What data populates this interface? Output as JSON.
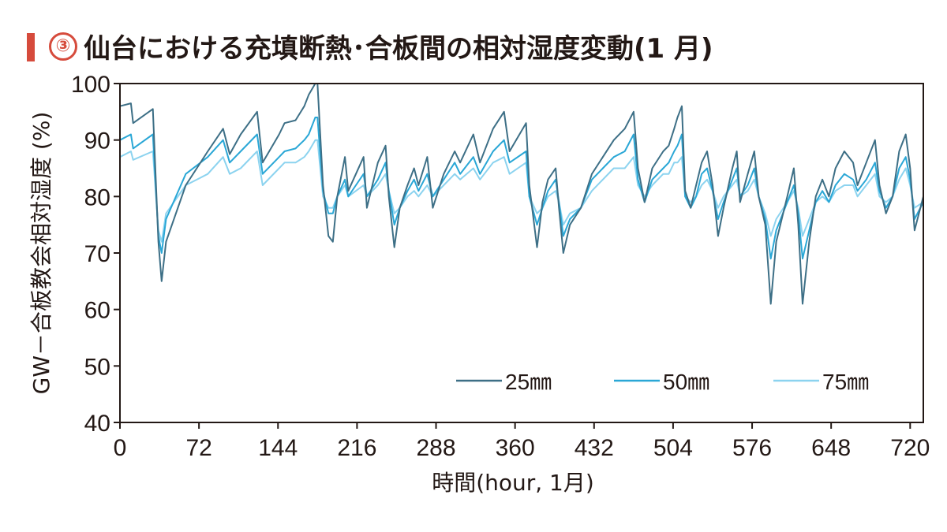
{
  "title": {
    "marker": "③",
    "text": "仙台における充填断熱･合板間の相対湿度変動(1 月)"
  },
  "chart_data": {
    "type": "line",
    "title": "③仙台における充填断熱･合板間の相対湿度変動(1 月)",
    "xlabel": "時間(hour, 1月)",
    "ylabel": "GW－合板教会相対湿度 (%)",
    "xlim": [
      0,
      732
    ],
    "ylim": [
      40,
      100
    ],
    "xticks": [
      0,
      72,
      144,
      216,
      288,
      360,
      432,
      504,
      576,
      648,
      720
    ],
    "yticks": [
      40,
      50,
      60,
      70,
      80,
      90,
      100
    ],
    "grid": false,
    "legend_position": "bottom-right",
    "series": [
      {
        "name": "25㎜",
        "color": "#3d6f86",
        "points": [
          [
            0,
            96
          ],
          [
            10,
            96.5
          ],
          [
            12,
            93
          ],
          [
            30,
            95.5
          ],
          [
            35,
            72
          ],
          [
            38,
            65
          ],
          [
            42,
            72
          ],
          [
            60,
            82
          ],
          [
            80,
            88
          ],
          [
            94,
            92
          ],
          [
            100,
            87.5
          ],
          [
            110,
            91
          ],
          [
            125,
            95
          ],
          [
            130,
            86
          ],
          [
            145,
            91
          ],
          [
            150,
            93
          ],
          [
            160,
            93.5
          ],
          [
            168,
            96
          ],
          [
            172,
            98
          ],
          [
            178,
            100
          ],
          [
            180,
            100
          ],
          [
            185,
            82
          ],
          [
            190,
            73
          ],
          [
            194,
            72
          ],
          [
            198,
            80
          ],
          [
            205,
            87
          ],
          [
            208,
            81
          ],
          [
            215,
            84
          ],
          [
            222,
            87
          ],
          [
            225,
            78
          ],
          [
            235,
            86
          ],
          [
            242,
            89
          ],
          [
            245,
            80
          ],
          [
            250,
            71
          ],
          [
            255,
            78
          ],
          [
            262,
            82
          ],
          [
            268,
            85
          ],
          [
            272,
            82
          ],
          [
            280,
            87
          ],
          [
            285,
            78
          ],
          [
            295,
            84
          ],
          [
            305,
            88
          ],
          [
            310,
            86
          ],
          [
            322,
            91
          ],
          [
            328,
            86
          ],
          [
            340,
            92
          ],
          [
            350,
            95
          ],
          [
            355,
            88
          ],
          [
            370,
            93
          ],
          [
            373,
            82
          ],
          [
            380,
            71
          ],
          [
            385,
            79
          ],
          [
            390,
            83
          ],
          [
            397,
            85
          ],
          [
            400,
            78
          ],
          [
            404,
            70
          ],
          [
            410,
            75
          ],
          [
            420,
            78
          ],
          [
            430,
            84
          ],
          [
            440,
            87
          ],
          [
            450,
            90
          ],
          [
            460,
            92
          ],
          [
            468,
            95
          ],
          [
            472,
            85
          ],
          [
            478,
            79
          ],
          [
            485,
            85
          ],
          [
            495,
            88
          ],
          [
            500,
            89
          ],
          [
            505,
            92
          ],
          [
            508,
            94
          ],
          [
            512,
            96
          ],
          [
            515,
            81
          ],
          [
            520,
            78
          ],
          [
            525,
            82
          ],
          [
            530,
            86
          ],
          [
            535,
            88
          ],
          [
            540,
            82
          ],
          [
            545,
            73
          ],
          [
            550,
            78
          ],
          [
            558,
            85
          ],
          [
            562,
            88
          ],
          [
            565,
            79
          ],
          [
            572,
            84
          ],
          [
            578,
            88
          ],
          [
            582,
            80
          ],
          [
            588,
            75
          ],
          [
            593,
            61
          ],
          [
            598,
            72
          ],
          [
            608,
            80
          ],
          [
            614,
            85
          ],
          [
            618,
            75
          ],
          [
            622,
            61
          ],
          [
            628,
            72
          ],
          [
            634,
            80
          ],
          [
            640,
            83
          ],
          [
            646,
            80
          ],
          [
            652,
            85
          ],
          [
            660,
            88
          ],
          [
            668,
            86
          ],
          [
            672,
            82
          ],
          [
            680,
            86
          ],
          [
            688,
            90
          ],
          [
            692,
            82
          ],
          [
            698,
            77
          ],
          [
            704,
            80
          ],
          [
            710,
            88
          ],
          [
            716,
            91
          ],
          [
            720,
            85
          ],
          [
            724,
            74
          ],
          [
            732,
            80
          ]
        ]
      },
      {
        "name": "50㎜",
        "color": "#2aa7d6",
        "points": [
          [
            0,
            90
          ],
          [
            10,
            91
          ],
          [
            12,
            88.5
          ],
          [
            30,
            91
          ],
          [
            35,
            73
          ],
          [
            38,
            70
          ],
          [
            42,
            76
          ],
          [
            60,
            84
          ],
          [
            80,
            87
          ],
          [
            94,
            90
          ],
          [
            100,
            86
          ],
          [
            110,
            88
          ],
          [
            125,
            91
          ],
          [
            130,
            84
          ],
          [
            145,
            87
          ],
          [
            150,
            88
          ],
          [
            160,
            88.5
          ],
          [
            168,
            90
          ],
          [
            172,
            91
          ],
          [
            178,
            94
          ],
          [
            180,
            94
          ],
          [
            185,
            81
          ],
          [
            190,
            77
          ],
          [
            194,
            77
          ],
          [
            198,
            80
          ],
          [
            205,
            83
          ],
          [
            208,
            80
          ],
          [
            215,
            82
          ],
          [
            222,
            84
          ],
          [
            225,
            80
          ],
          [
            235,
            83
          ],
          [
            242,
            86
          ],
          [
            245,
            81
          ],
          [
            250,
            75
          ],
          [
            255,
            78
          ],
          [
            262,
            81
          ],
          [
            268,
            83
          ],
          [
            272,
            81
          ],
          [
            280,
            84
          ],
          [
            285,
            80
          ],
          [
            295,
            83
          ],
          [
            305,
            86
          ],
          [
            310,
            84
          ],
          [
            322,
            87
          ],
          [
            328,
            84
          ],
          [
            340,
            88
          ],
          [
            350,
            90
          ],
          [
            355,
            86
          ],
          [
            370,
            88
          ],
          [
            373,
            80
          ],
          [
            380,
            75
          ],
          [
            385,
            78
          ],
          [
            390,
            81
          ],
          [
            397,
            83
          ],
          [
            400,
            79
          ],
          [
            404,
            73
          ],
          [
            410,
            76
          ],
          [
            420,
            78
          ],
          [
            430,
            83
          ],
          [
            440,
            85
          ],
          [
            450,
            87
          ],
          [
            460,
            88
          ],
          [
            468,
            91
          ],
          [
            472,
            83
          ],
          [
            478,
            79
          ],
          [
            485,
            83
          ],
          [
            495,
            85
          ],
          [
            500,
            86
          ],
          [
            505,
            88
          ],
          [
            508,
            89
          ],
          [
            512,
            91
          ],
          [
            515,
            80
          ],
          [
            520,
            78
          ],
          [
            525,
            80
          ],
          [
            530,
            84
          ],
          [
            535,
            85
          ],
          [
            540,
            81
          ],
          [
            545,
            76
          ],
          [
            550,
            79
          ],
          [
            558,
            83
          ],
          [
            562,
            85
          ],
          [
            565,
            80
          ],
          [
            572,
            82
          ],
          [
            578,
            85
          ],
          [
            582,
            80
          ],
          [
            588,
            76
          ],
          [
            593,
            69
          ],
          [
            598,
            74
          ],
          [
            608,
            79
          ],
          [
            614,
            82
          ],
          [
            618,
            77
          ],
          [
            622,
            69
          ],
          [
            628,
            74
          ],
          [
            634,
            79
          ],
          [
            640,
            81
          ],
          [
            646,
            79
          ],
          [
            652,
            82
          ],
          [
            660,
            84
          ],
          [
            668,
            83
          ],
          [
            672,
            81
          ],
          [
            680,
            83
          ],
          [
            688,
            86
          ],
          [
            692,
            81
          ],
          [
            698,
            78
          ],
          [
            704,
            80
          ],
          [
            710,
            85
          ],
          [
            716,
            87
          ],
          [
            720,
            83
          ],
          [
            724,
            76
          ],
          [
            732,
            79
          ]
        ]
      },
      {
        "name": "75㎜",
        "color": "#8cd3ef",
        "points": [
          [
            0,
            87
          ],
          [
            10,
            88
          ],
          [
            12,
            86.5
          ],
          [
            30,
            88
          ],
          [
            35,
            74
          ],
          [
            38,
            72
          ],
          [
            42,
            77
          ],
          [
            60,
            82
          ],
          [
            80,
            84
          ],
          [
            94,
            87
          ],
          [
            100,
            84
          ],
          [
            110,
            85
          ],
          [
            125,
            88
          ],
          [
            130,
            82
          ],
          [
            145,
            85
          ],
          [
            150,
            86
          ],
          [
            160,
            86
          ],
          [
            168,
            87
          ],
          [
            172,
            88
          ],
          [
            178,
            90
          ],
          [
            180,
            90
          ],
          [
            185,
            80
          ],
          [
            190,
            78
          ],
          [
            194,
            78
          ],
          [
            198,
            80
          ],
          [
            205,
            82
          ],
          [
            208,
            80
          ],
          [
            215,
            81
          ],
          [
            222,
            82
          ],
          [
            225,
            80
          ],
          [
            235,
            82
          ],
          [
            242,
            84
          ],
          [
            245,
            81
          ],
          [
            250,
            77
          ],
          [
            255,
            78
          ],
          [
            262,
            80
          ],
          [
            268,
            81
          ],
          [
            272,
            80
          ],
          [
            280,
            82
          ],
          [
            285,
            80
          ],
          [
            295,
            82
          ],
          [
            305,
            84
          ],
          [
            310,
            83
          ],
          [
            322,
            85
          ],
          [
            328,
            83
          ],
          [
            340,
            86
          ],
          [
            350,
            87
          ],
          [
            355,
            84
          ],
          [
            370,
            86
          ],
          [
            373,
            80
          ],
          [
            380,
            77
          ],
          [
            385,
            78
          ],
          [
            390,
            80
          ],
          [
            397,
            81
          ],
          [
            400,
            79
          ],
          [
            404,
            75
          ],
          [
            410,
            77
          ],
          [
            420,
            78
          ],
          [
            430,
            81
          ],
          [
            440,
            83
          ],
          [
            450,
            85
          ],
          [
            460,
            85
          ],
          [
            468,
            87
          ],
          [
            472,
            82
          ],
          [
            478,
            80
          ],
          [
            485,
            82
          ],
          [
            495,
            84
          ],
          [
            500,
            84
          ],
          [
            505,
            86
          ],
          [
            508,
            86
          ],
          [
            512,
            87
          ],
          [
            515,
            80
          ],
          [
            520,
            79
          ],
          [
            525,
            80
          ],
          [
            530,
            82
          ],
          [
            535,
            83
          ],
          [
            540,
            81
          ],
          [
            545,
            78
          ],
          [
            550,
            80
          ],
          [
            558,
            82
          ],
          [
            562,
            83
          ],
          [
            565,
            80
          ],
          [
            572,
            81
          ],
          [
            578,
            83
          ],
          [
            582,
            80
          ],
          [
            588,
            77
          ],
          [
            593,
            73
          ],
          [
            598,
            76
          ],
          [
            608,
            79
          ],
          [
            614,
            81
          ],
          [
            618,
            78
          ],
          [
            622,
            73
          ],
          [
            628,
            76
          ],
          [
            634,
            79
          ],
          [
            640,
            80
          ],
          [
            646,
            79
          ],
          [
            652,
            81
          ],
          [
            660,
            82
          ],
          [
            668,
            82
          ],
          [
            672,
            80
          ],
          [
            680,
            82
          ],
          [
            688,
            84
          ],
          [
            692,
            80
          ],
          [
            698,
            79
          ],
          [
            704,
            80
          ],
          [
            710,
            83
          ],
          [
            716,
            85
          ],
          [
            720,
            82
          ],
          [
            724,
            78
          ],
          [
            732,
            79
          ]
        ]
      }
    ]
  }
}
